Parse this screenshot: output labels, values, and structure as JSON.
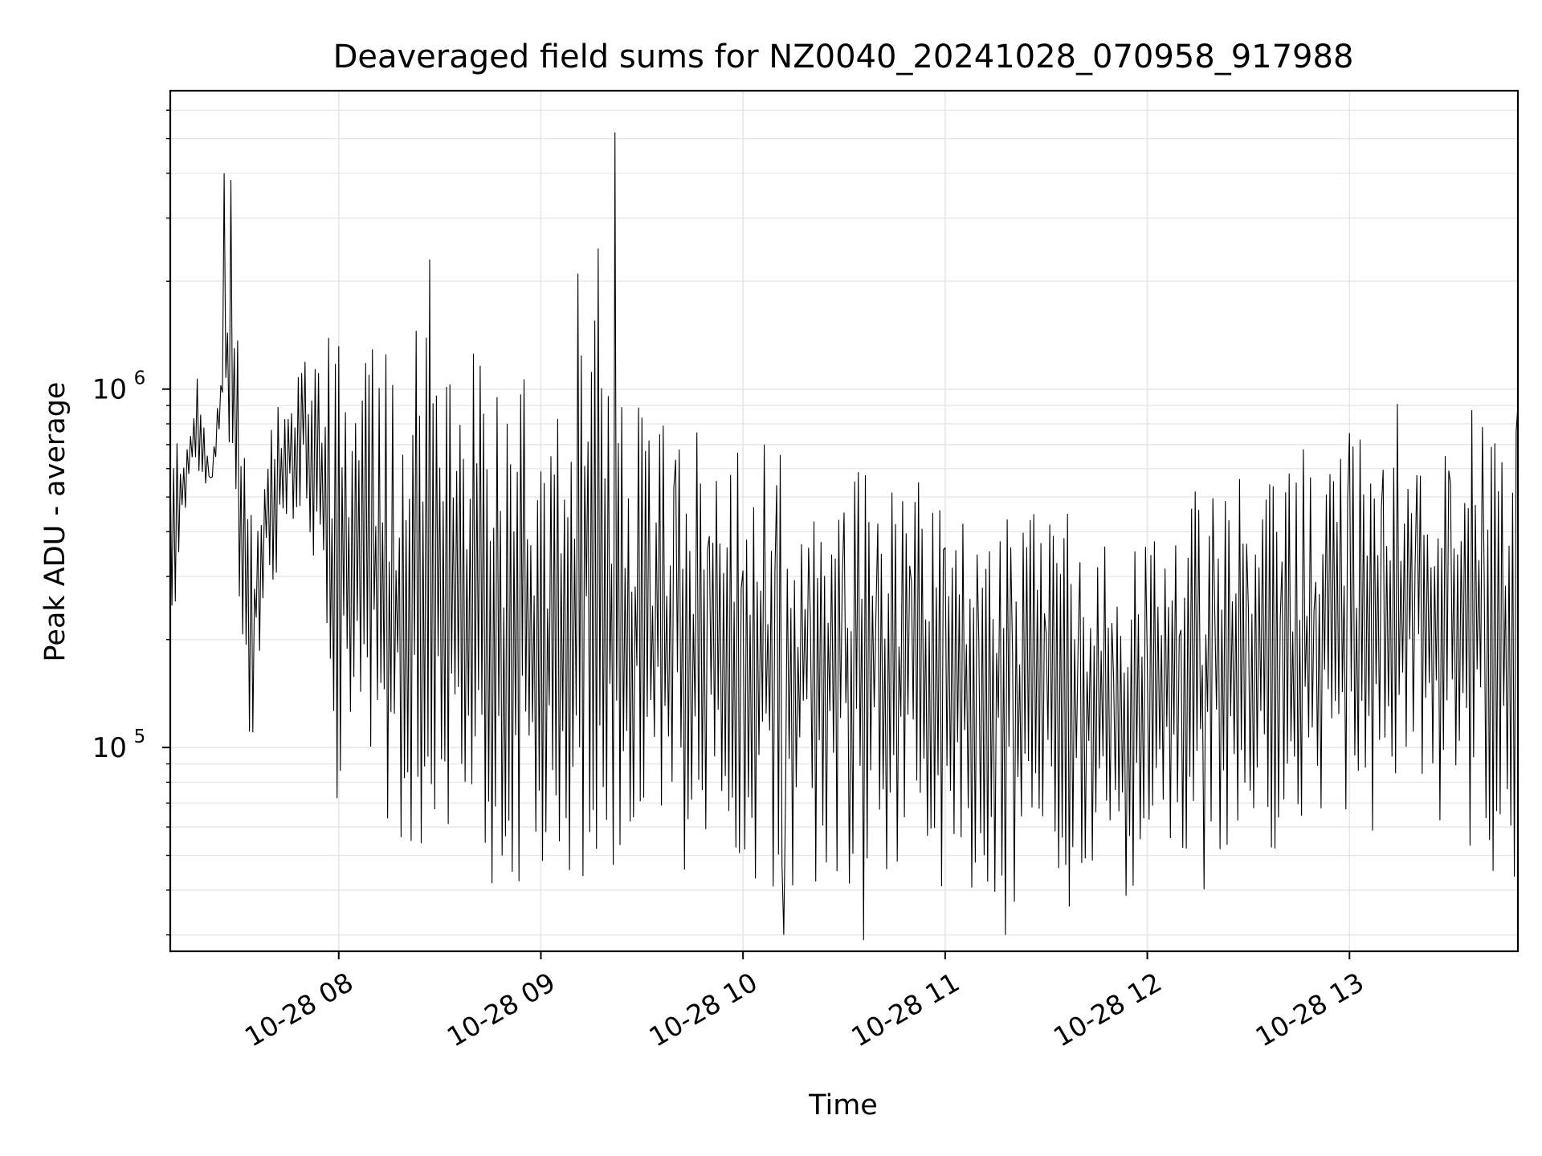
{
  "chart_data": {
    "type": "line",
    "title": "Deaveraged field sums for NZ0040_20241028_070958_917988",
    "xlabel": "Time",
    "ylabel": "Peak ADU - average",
    "y_scale": "log",
    "x_range": [
      "2024-10-28 07:10",
      "2024-10-28 13:50"
    ],
    "ylim": [
      27000,
      6800000
    ],
    "x_ticks": [
      {
        "value": "2024-10-28 08:00",
        "label": "10-28 08"
      },
      {
        "value": "2024-10-28 09:00",
        "label": "10-28 09"
      },
      {
        "value": "2024-10-28 10:00",
        "label": "10-28 10"
      },
      {
        "value": "2024-10-28 11:00",
        "label": "10-28 11"
      },
      {
        "value": "2024-10-28 12:00",
        "label": "10-28 12"
      },
      {
        "value": "2024-10-28 13:00",
        "label": "10-28 13"
      }
    ],
    "y_ticks": [
      {
        "value": 100000,
        "label": "10",
        "exp": "5"
      },
      {
        "value": 1000000,
        "label": "10",
        "exp": "6"
      }
    ],
    "grid": true,
    "legend": false,
    "line_color": "#000000",
    "grid_color": "#e6e6e6",
    "series": [
      {
        "x": [
          "2024-10-28 07:10",
          "2024-10-28 07:14",
          "2024-10-28 07:18",
          "2024-10-28 07:22",
          "2024-10-28 07:26",
          "2024-10-28 07:28",
          "2024-10-28 07:31",
          "2024-10-28 07:34",
          "2024-10-28 07:38",
          "2024-10-28 07:42",
          "2024-10-28 07:45",
          "2024-10-28 07:50",
          "2024-10-28 07:55",
          "2024-10-28 08:00",
          "2024-10-28 08:05",
          "2024-10-28 08:10",
          "2024-10-28 08:15",
          "2024-10-28 08:20",
          "2024-10-28 08:25",
          "2024-10-28 08:30",
          "2024-10-28 08:35",
          "2024-10-28 08:40",
          "2024-10-28 08:45",
          "2024-10-28 08:50",
          "2024-10-28 08:55",
          "2024-10-28 09:00",
          "2024-10-28 09:05",
          "2024-10-28 09:10",
          "2024-10-28 09:15",
          "2024-10-28 09:20",
          "2024-10-28 09:25",
          "2024-10-28 09:30",
          "2024-10-28 09:40",
          "2024-10-28 09:50",
          "2024-10-28 10:00",
          "2024-10-28 10:10",
          "2024-10-28 10:20",
          "2024-10-28 10:30",
          "2024-10-28 10:40",
          "2024-10-28 10:50",
          "2024-10-28 11:00",
          "2024-10-28 11:10",
          "2024-10-28 11:20",
          "2024-10-28 11:30",
          "2024-10-28 11:40",
          "2024-10-28 11:50",
          "2024-10-28 12:00",
          "2024-10-28 12:10",
          "2024-10-28 12:20",
          "2024-10-28 12:30",
          "2024-10-28 12:40",
          "2024-10-28 12:50",
          "2024-10-28 13:00",
          "2024-10-28 13:10",
          "2024-10-28 13:20",
          "2024-10-28 13:30",
          "2024-10-28 13:40",
          "2024-10-28 13:50"
        ],
        "upper": [
          1100000,
          700000,
          1200000,
          600000,
          1500000,
          4000000,
          900000,
          500000,
          700000,
          900000,
          900000,
          1300000,
          1400000,
          1400000,
          1300000,
          1300000,
          1300000,
          1200000,
          2300000,
          1200000,
          1100000,
          1300000,
          1100000,
          1000000,
          1200000,
          1000000,
          900000,
          900000,
          5200000,
          1000000,
          900000,
          900000,
          800000,
          800000,
          750000,
          700000,
          650000,
          600000,
          600000,
          550000,
          600000,
          550000,
          500000,
          480000,
          450000,
          480000,
          500000,
          500000,
          550000,
          600000,
          650000,
          700000,
          800000,
          1000000,
          1000000,
          950000,
          900000,
          900000
        ],
        "lower": [
          170000,
          450000,
          500000,
          520000,
          900000,
          600000,
          220000,
          90000,
          250000,
          300000,
          400000,
          500000,
          200000,
          62000,
          120000,
          80000,
          60000,
          50000,
          48000,
          42000,
          45000,
          48000,
          42000,
          40000,
          38000,
          40000,
          40000,
          42000,
          42000,
          45000,
          45000,
          46000,
          45000,
          45000,
          43000,
          40000,
          40000,
          40000,
          38000,
          37000,
          40000,
          38000,
          36000,
          36000,
          36000,
          36000,
          36000,
          38000,
          40000,
          45000,
          48000,
          50000,
          50000,
          55000,
          60000,
          45000,
          42000,
          42000
        ],
        "spikes": [
          {
            "x": "2024-10-28 07:26",
            "y": 4000000
          },
          {
            "x": "2024-10-28 08:27",
            "y": 2300000
          },
          {
            "x": "2024-10-28 09:11",
            "y": 2100000
          },
          {
            "x": "2024-10-28 09:22",
            "y": 5200000
          },
          {
            "x": "2024-10-28 10:12",
            "y": 30000
          },
          {
            "x": "2024-10-28 10:36",
            "y": 29000
          },
          {
            "x": "2024-10-28 11:18",
            "y": 30000
          }
        ]
      }
    ]
  }
}
